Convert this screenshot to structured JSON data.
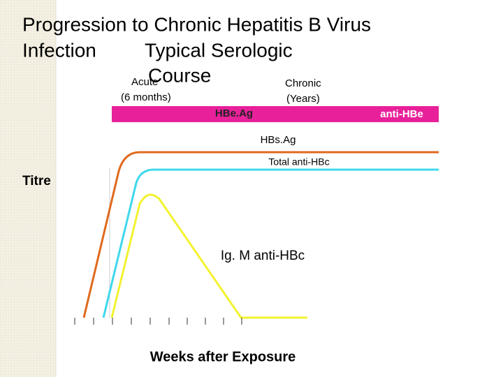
{
  "title_lines": [
    "Progression to Chronic Hepatitis B Virus",
    "Infection",
    "Typical Serologic",
    "Course"
  ],
  "phases": {
    "acute": "Acute",
    "acute_duration": "(6 months)",
    "chronic": "Chronic",
    "chronic_duration": "(Years)"
  },
  "bar_labels": {
    "hbeag": "HBe.Ag",
    "anti_hbe": "anti-HBe"
  },
  "curve_labels": {
    "hbsag": "HBs.Ag",
    "total_anti_hbc": "Total anti-HBc",
    "igm_anti_hbc": "Ig. M anti-HBc"
  },
  "y_axis_label": "Titre",
  "x_axis_label": "Weeks after Exposure"
}
